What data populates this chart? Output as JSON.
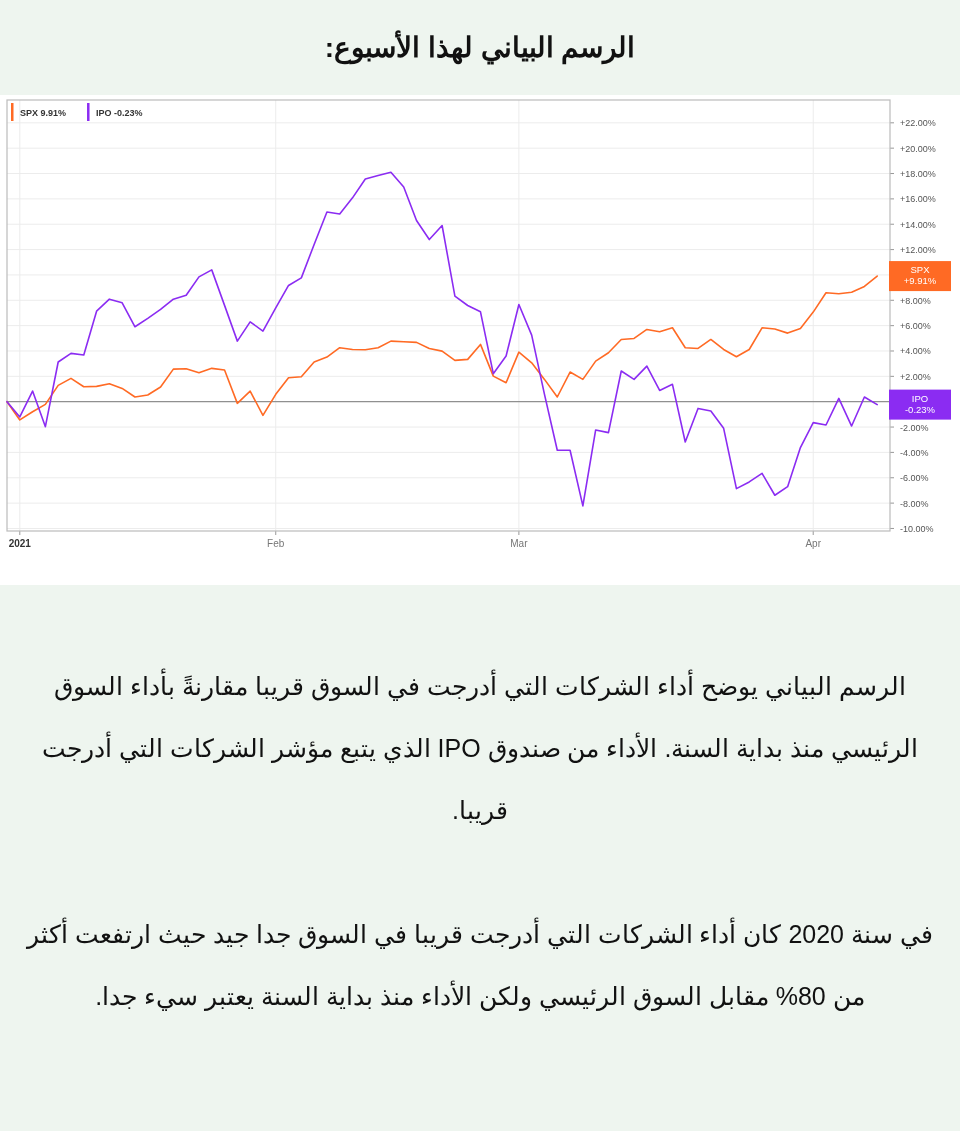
{
  "chart_data": {
    "type": "line",
    "title": "الرسم البياني لهذا الأسبوع:",
    "categories": [
      null,
      "2021",
      null,
      null,
      null,
      null,
      null,
      null,
      null,
      null,
      null,
      null,
      null,
      null,
      null,
      null,
      null,
      null,
      null,
      null,
      null,
      "Feb",
      null,
      null,
      null,
      null,
      null,
      null,
      null,
      null,
      null,
      null,
      null,
      null,
      null,
      null,
      null,
      null,
      null,
      null,
      "Mar",
      null,
      null,
      null,
      null,
      null,
      null,
      null,
      null,
      null,
      null,
      null,
      null,
      null,
      null,
      null,
      null,
      null,
      null,
      null,
      null,
      null,
      null,
      "Apr",
      null,
      null,
      null,
      null,
      null
    ],
    "series": [
      {
        "name": "SPX 9.91%",
        "color": "#ff6a24",
        "values": [
          0,
          -1.44,
          -0.79,
          -0.21,
          1.29,
          1.84,
          1.18,
          1.21,
          1.42,
          1.05,
          0.37,
          0.53,
          1.16,
          2.57,
          2.6,
          2.29,
          2.63,
          2.5,
          -0.13,
          0.84,
          -1.08,
          0.58,
          1.89,
          1.97,
          3.13,
          3.52,
          4.26,
          4.12,
          4.1,
          4.26,
          4.78,
          4.73,
          4.68,
          4.2,
          3.99,
          3.26,
          3.34,
          4.52,
          2.02,
          1.5,
          3.91,
          3.07,
          1.76,
          0.37,
          2.34,
          1.76,
          3.2,
          3.86,
          4.91,
          4.99,
          5.7,
          5.52,
          5.83,
          4.26,
          4.2,
          4.91,
          4.12,
          3.55,
          4.12,
          5.83,
          5.73,
          5.41,
          5.78,
          7.07,
          8.59,
          8.51,
          8.64,
          9.09,
          9.91
        ]
      },
      {
        "name": "IPO -0.23%",
        "color": "#8b2cf2",
        "values": [
          0,
          -1.2,
          0.84,
          -1.97,
          3.13,
          3.81,
          3.68,
          7.14,
          8.09,
          7.8,
          5.91,
          6.57,
          7.28,
          8.09,
          8.4,
          9.85,
          10.4,
          7.6,
          4.78,
          6.3,
          5.57,
          7.4,
          9.17,
          9.77,
          12.4,
          14.97,
          14.81,
          16.08,
          17.57,
          17.84,
          18.1,
          16.94,
          14.29,
          12.79,
          13.9,
          8.33,
          7.59,
          7.09,
          2.21,
          3.6,
          7.67,
          5.25,
          0.58,
          -3.83,
          -3.83,
          -8.22,
          -2.23,
          -2.44,
          2.42,
          1.76,
          2.81,
          0.89,
          1.37,
          -3.18,
          -0.53,
          -0.74,
          -2.1,
          -6.86,
          -6.33,
          -5.65,
          -7.38,
          -6.7,
          -3.62,
          -1.65,
          -1.84,
          0.26,
          -1.92,
          0.37,
          -0.23
        ]
      }
    ],
    "ylim": [
      -10.2,
      23.8
    ],
    "yticks": [
      {
        "value": -10,
        "label": "-10.00%"
      },
      {
        "value": -8,
        "label": "-8.00%"
      },
      {
        "value": -6,
        "label": "-6.00%"
      },
      {
        "value": -4,
        "label": "-4.00%"
      },
      {
        "value": -2,
        "label": "-2.00%"
      },
      {
        "value": 0,
        "label": null
      },
      {
        "value": 2,
        "label": "+2.00%"
      },
      {
        "value": 4,
        "label": "+4.00%"
      },
      {
        "value": 6,
        "label": "+6.00%"
      },
      {
        "value": 8,
        "label": "+8.00%"
      },
      {
        "value": 10,
        "label": null
      },
      {
        "value": 12,
        "label": "+12.00%"
      },
      {
        "value": 14,
        "label": "+14.00%"
      },
      {
        "value": 16,
        "label": "+16.00%"
      },
      {
        "value": 18,
        "label": "+18.00%"
      },
      {
        "value": 20,
        "label": "+20.00%"
      },
      {
        "value": 22,
        "label": "+22.00%"
      }
    ],
    "ref_lines": [
      {
        "axis": "y",
        "value": 0,
        "color": "#7a7a7a"
      }
    ],
    "grid": true,
    "legend": "top left",
    "annotations": [
      "SPX\n+9.91%",
      "IPO\n-0.23%",
      "الرسم البياني يوضح أداء الشركات التي أدرجت في السوق قريبا مقارنةً بأداء السوق الرئيسي منذ بداية السنة. الأداء من صندوق IPO الذي يتبع مؤشر الشركات التي أدرجت قريبا.",
      "في سنة 2020 كان أداء الشركات التي أدرجت قريبا في السوق جدا جيد حيث ارتفعت أكثر من 80% مقابل السوق الرئيسي ولكن الأداء منذ بداية السنة يعتبر سيء جدا."
    ]
  }
}
